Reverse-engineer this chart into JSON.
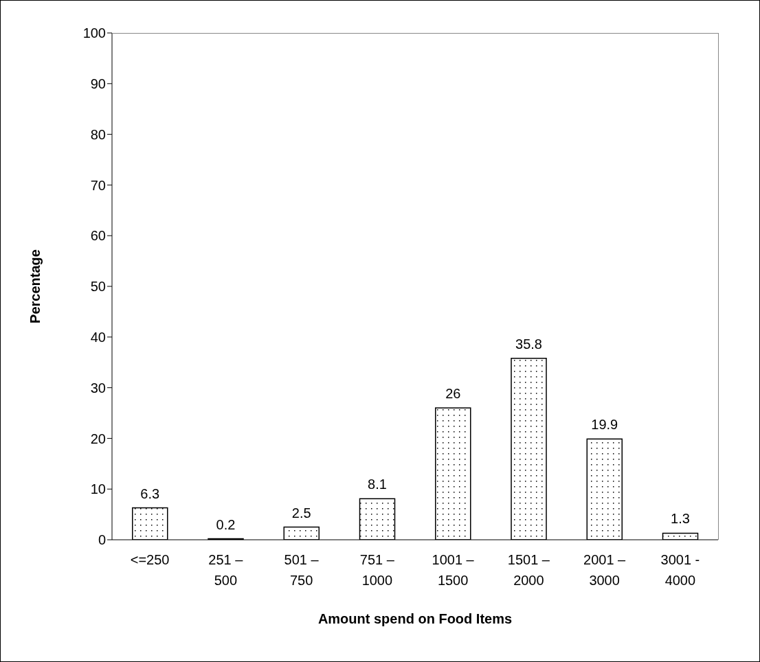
{
  "chart_data": {
    "type": "bar",
    "xlabel": "Amount spend on Food Items",
    "ylabel": "Percentage",
    "categories": [
      "<=250",
      "251 – 500",
      "501 – 750",
      "751 – 1000",
      "1001 – 1500",
      "1501 – 2000",
      "2001 – 3000",
      "3001 - 4000"
    ],
    "values": [
      6.3,
      0.2,
      2.5,
      8.1,
      26,
      35.8,
      19.9,
      1.3
    ],
    "color": "#000000",
    "ylim": [
      0,
      100
    ],
    "yticks": [
      0,
      10,
      20,
      30,
      40,
      50,
      60,
      70,
      80,
      90,
      100
    ],
    "grid": false,
    "legend": false,
    "data_labels": true
  }
}
